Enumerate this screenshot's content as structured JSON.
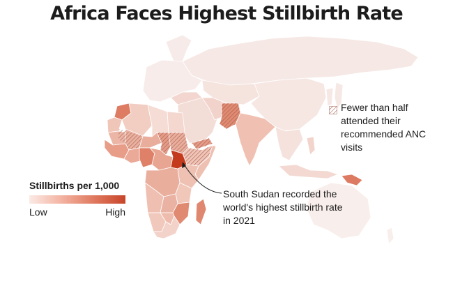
{
  "title": "Africa Faces Highest Stillbirth Rate",
  "legend": {
    "title": "Stillbirths per 1,000",
    "low_label": "Low",
    "high_label": "High",
    "colors": [
      "#fbeae5",
      "#f3b3a2",
      "#e07a60",
      "#c7452a"
    ]
  },
  "hatch_legend": {
    "text": "Fewer than half attended their recommended ANC visits"
  },
  "annotation": {
    "text": "South Sudan recorded the world's highest stillbirth rate in 2021"
  },
  "map_colors": {
    "lightest": "#f6e6e2",
    "light": "#f2cfc6",
    "medium": "#eaa895",
    "dark": "#dc7a60",
    "darkest": "#c53b1e",
    "hatch": "#a05a4a"
  }
}
